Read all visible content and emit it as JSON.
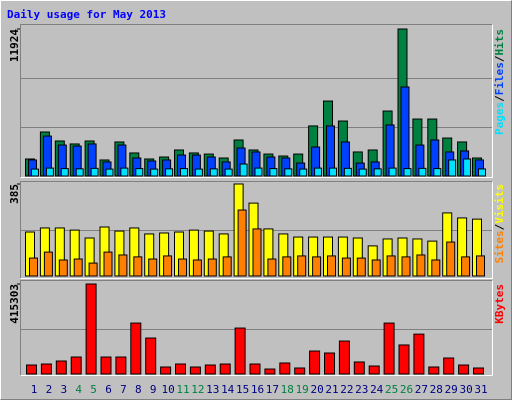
{
  "legend_separator": "/",
  "chart_data": [
    {
      "type": "bar",
      "title": "Daily usage for May 2013",
      "ylim": [
        0,
        11924
      ],
      "yticks": [
        11924
      ],
      "series": [
        {
          "name": "Hits",
          "color": "#008040",
          "values": [
            1380,
            3570,
            2840,
            2600,
            2840,
            1300,
            2760,
            1870,
            1380,
            1540,
            2110,
            1870,
            1780,
            1460,
            2920,
            2110,
            1780,
            1620,
            1780,
            4060,
            6080,
            4460,
            1950,
            2110,
            5270,
            11924,
            4620,
            4620,
            3080,
            2760,
            1460
          ]
        },
        {
          "name": "Files",
          "color": "#0040ff",
          "values": [
            1300,
            3240,
            2510,
            2430,
            2600,
            1140,
            2510,
            1460,
            1220,
            1300,
            1700,
            1700,
            1540,
            1140,
            2270,
            1950,
            1540,
            1460,
            1050,
            2350,
            4060,
            2760,
            1050,
            1140,
            4140,
            7220,
            2510,
            2920,
            1950,
            2030,
            1300
          ]
        },
        {
          "name": "Pages",
          "color": "#00e0ff",
          "values": [
            560,
            640,
            600,
            580,
            620,
            560,
            640,
            600,
            560,
            580,
            600,
            560,
            580,
            560,
            970,
            640,
            600,
            580,
            560,
            640,
            640,
            620,
            560,
            580,
            640,
            600,
            620,
            600,
            1300,
            1380,
            570
          ]
        }
      ]
    },
    {
      "type": "bar",
      "ylim": [
        0,
        385
      ],
      "yticks": [
        385
      ],
      "series": [
        {
          "name": "Visits",
          "color": "#ffff00",
          "values": [
            184,
            201,
            201,
            192,
            159,
            205,
            188,
            201,
            176,
            180,
            184,
            192,
            188,
            176,
            385,
            305,
            197,
            176,
            163,
            163,
            163,
            163,
            159,
            126,
            155,
            159,
            155,
            146,
            264,
            243,
            238
          ]
        },
        {
          "name": "Sites",
          "color": "#ff8000",
          "values": [
            75,
            100,
            67,
            71,
            54,
            100,
            88,
            80,
            71,
            84,
            71,
            67,
            71,
            80,
            276,
            197,
            71,
            80,
            84,
            80,
            84,
            75,
            75,
            67,
            84,
            80,
            88,
            67,
            142,
            80,
            84
          ]
        }
      ]
    },
    {
      "type": "bar",
      "ylim": [
        0,
        415303
      ],
      "yticks": [
        415303
      ],
      "categories": [
        "1",
        "2",
        "3",
        "4",
        "5",
        "6",
        "7",
        "8",
        "9",
        "10",
        "11",
        "12",
        "13",
        "14",
        "15",
        "16",
        "17",
        "18",
        "19",
        "20",
        "21",
        "22",
        "23",
        "24",
        "25",
        "26",
        "27",
        "28",
        "29",
        "30",
        "31"
      ],
      "category_colors": [
        "#000080",
        "#000080",
        "#000080",
        "#008040",
        "#008040",
        "#000080",
        "#000080",
        "#000080",
        "#000080",
        "#000080",
        "#008040",
        "#008040",
        "#000080",
        "#000080",
        "#000080",
        "#000080",
        "#000080",
        "#008040",
        "#008040",
        "#000080",
        "#000080",
        "#000080",
        "#000080",
        "#000080",
        "#008040",
        "#008040",
        "#000080",
        "#000080",
        "#000080",
        "#000080",
        "#000080"
      ],
      "series": [
        {
          "name": "KBytes",
          "color": "#ff0000",
          "values": [
            41500,
            46100,
            60000,
            78400,
            415303,
            78400,
            78400,
            235000,
            166000,
            32300,
            46100,
            32300,
            41500,
            46100,
            212000,
            46100,
            23000,
            50800,
            27700,
            106000,
            96900,
            152000,
            55400,
            36900,
            235000,
            134000,
            184000,
            32300,
            73800,
            41500,
            27700
          ]
        }
      ]
    }
  ]
}
